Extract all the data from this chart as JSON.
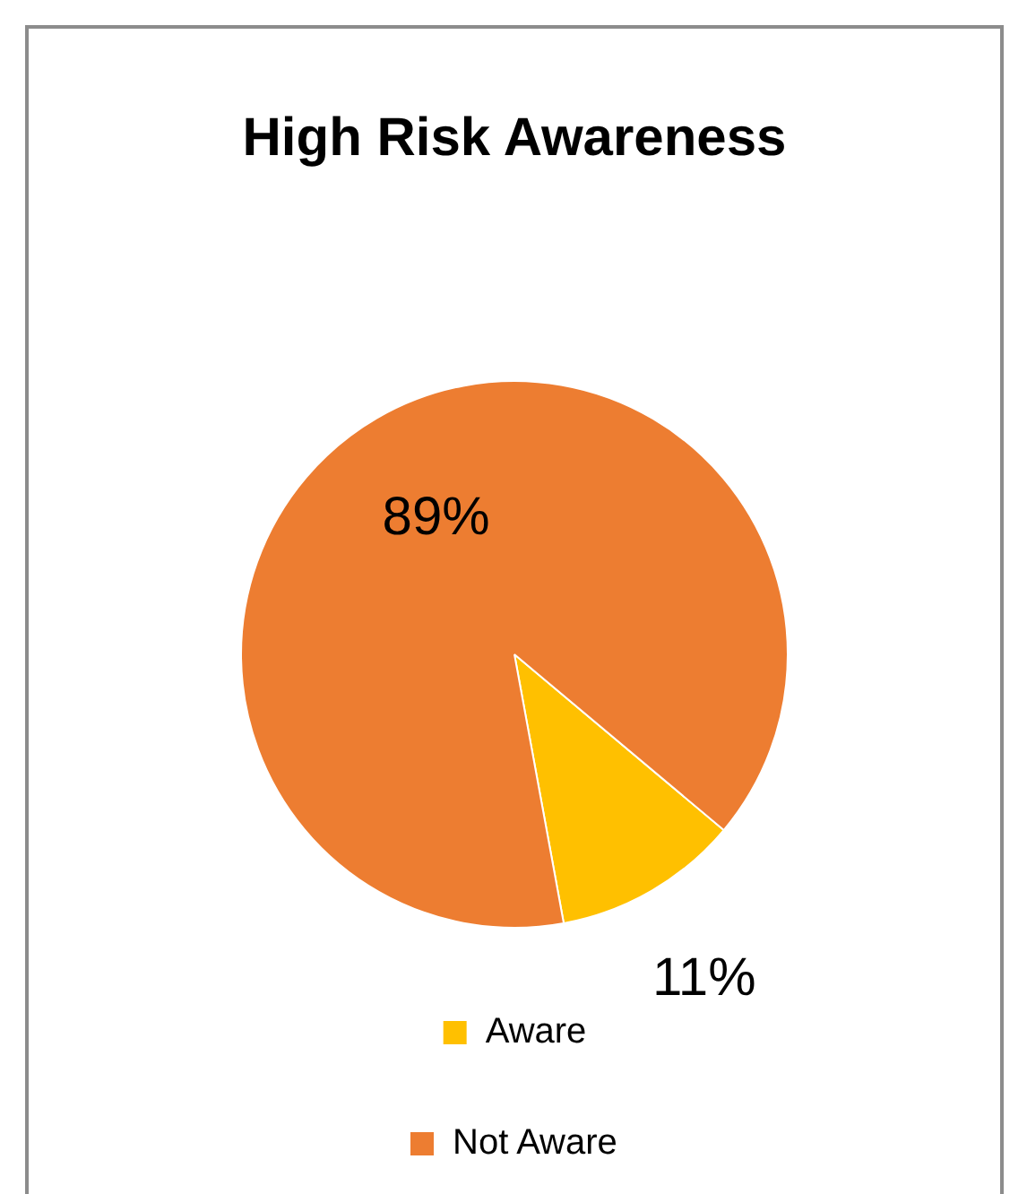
{
  "chart_data": {
    "type": "pie",
    "title": "High Risk Awareness",
    "categories": [
      "Aware",
      "Not Aware"
    ],
    "values": [
      11,
      89
    ],
    "colors": [
      "#ffc000",
      "#ed7d31"
    ],
    "value_labels": [
      "11%",
      "89%"
    ],
    "legend": "bottom"
  }
}
